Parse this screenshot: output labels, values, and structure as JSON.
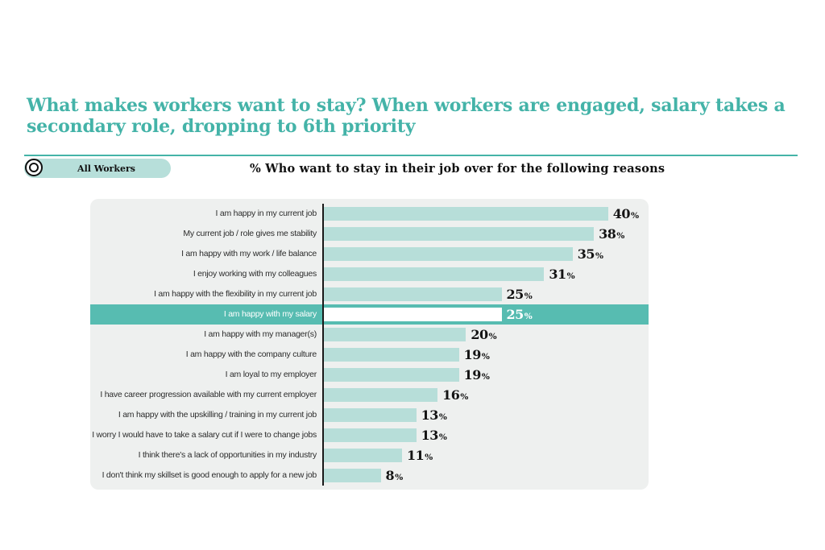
{
  "header": {
    "title": "What makes workers want to stay? When workers are engaged, salary takes a secondary role, dropping to 6th priority",
    "title_color": "#44b3a8"
  },
  "filter": {
    "badge_label": "All Workers",
    "icon": "target-circles-icon"
  },
  "chart_data": {
    "type": "bar",
    "orientation": "horizontal",
    "title": "% Who want to stay in their job over for the following reasons",
    "categories": [
      "I am happy in my current job",
      "My current job / role gives me stability",
      "I am happy with my work / life balance",
      "I enjoy working with my colleagues",
      "I am happy with the flexibility in my current job",
      "I am happy with my salary",
      "I am happy with my manager(s)",
      "I am happy with the company culture",
      "I am loyal to my employer",
      "I have career progression available with my current employer",
      "I am happy with the upskilling / training in my current job",
      "I worry I would have to take a salary cut if I were to change jobs",
      "I think there's a lack of opportunities in my industry",
      "I don't think my skillset is good enough to apply for a new job"
    ],
    "values": [
      40,
      38,
      35,
      31,
      25,
      25,
      20,
      19,
      19,
      16,
      13,
      13,
      11,
      8
    ],
    "value_suffix": "%",
    "xlim": [
      0,
      45
    ],
    "grid": false,
    "legend_position": "none",
    "highlight_index": 5,
    "highlight_category": "I am happy with my salary",
    "colors": {
      "bar": "#b7ded9",
      "highlight_band": "#57bcb1",
      "highlight_bar": "#ffffff",
      "panel_background": "#eef0ef",
      "axis_line": "#191919",
      "value_text": "#141414"
    }
  }
}
